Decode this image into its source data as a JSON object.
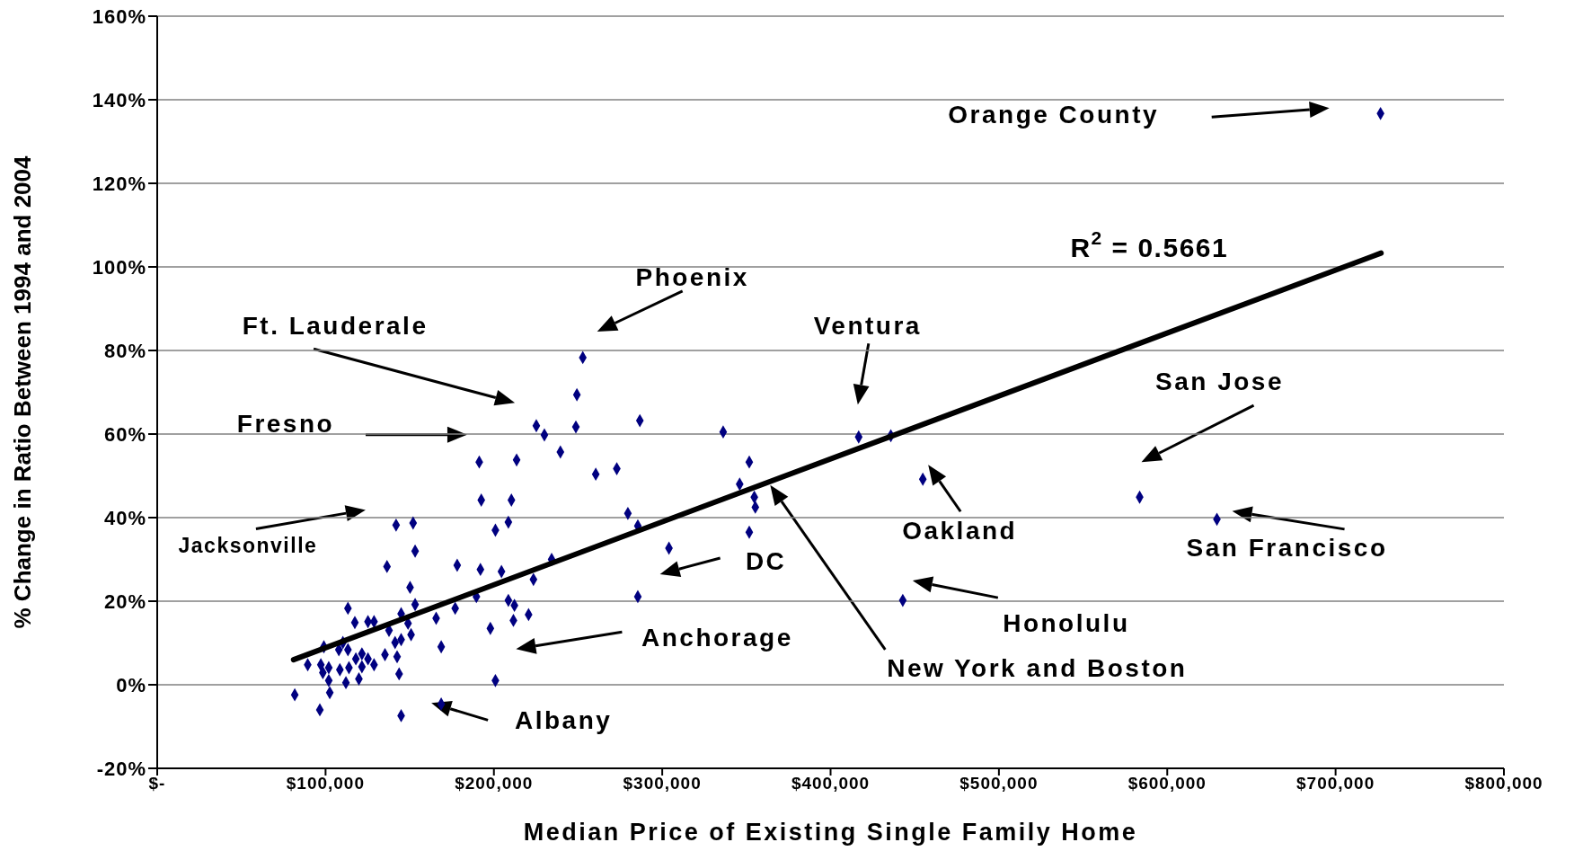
{
  "chart_data": {
    "type": "scatter",
    "xlabel": "Median Price of Existing Single Family Home",
    "ylabel": "% Change in Ratio Between 1994 and 2004",
    "xlim": [
      0,
      800000
    ],
    "xticks": [
      {
        "value": 0,
        "label": "$-"
      },
      {
        "value": 100000,
        "label": "$100,000"
      },
      {
        "value": 200000,
        "label": "$200,000"
      },
      {
        "value": 300000,
        "label": "$300,000"
      },
      {
        "value": 400000,
        "label": "$400,000"
      },
      {
        "value": 500000,
        "label": "$500,000"
      },
      {
        "value": 600000,
        "label": "$600,000"
      },
      {
        "value": 700000,
        "label": "$700,000"
      },
      {
        "value": 800000,
        "label": "$800,000"
      }
    ],
    "ylim": [
      -20,
      160
    ],
    "yticks": [
      {
        "value": -20,
        "label": "-20%"
      },
      {
        "value": 0,
        "label": "0%"
      },
      {
        "value": 20,
        "label": "20%"
      },
      {
        "value": 40,
        "label": "40%"
      },
      {
        "value": 60,
        "label": "60%"
      },
      {
        "value": 80,
        "label": "80%"
      },
      {
        "value": 100,
        "label": "100%"
      },
      {
        "value": 120,
        "label": "120%"
      },
      {
        "value": 140,
        "label": "140%"
      },
      {
        "value": 160,
        "label": "160%"
      }
    ],
    "grid": "y",
    "series": [
      {
        "marker": "diamond",
        "color": "#000080",
        "x": [
          726700,
          583600,
          629500,
          442900,
          454800,
          416700,
          435800,
          351700,
          346000,
          354700,
          355300,
          351700,
          336200,
          286700,
          252800,
          249300,
          248700,
          225200,
          230000,
          239500,
          260500,
          273000,
          279600,
          285500,
          304000,
          285500,
          191300,
          213500,
          192500,
          210400,
          208600,
          200900,
          178200,
          192000,
          204500,
          234300,
          223500,
          189600,
          208600,
          212200,
          177000,
          165700,
          211600,
          220600,
          197900,
          168700,
          200900,
          141900,
          152000,
          153200,
          136500,
          150200,
          113300,
          153200,
          144900,
          117400,
          125200,
          128800,
          137700,
          149000,
          144900,
          150800,
          141300,
          110300,
          99000,
          107900,
          113300,
          121600,
          125200,
          135300,
          142500,
          89400,
          97200,
          101900,
          108500,
          113900,
          121600,
          128800,
          98400,
          101900,
          112100,
          119800,
          118000,
          143700,
          81700,
          102500,
          96600,
          144900,
          168700
        ],
        "values": [
          136.7,
          44.9,
          39.6,
          20.2,
          49.2,
          59.3,
          59.6,
          53.3,
          48.0,
          44.9,
          42.5,
          36.5,
          60.5,
          63.2,
          78.3,
          69.4,
          61.7,
          62.0,
          59.8,
          55.7,
          50.4,
          51.7,
          41.0,
          38.0,
          32.7,
          21.1,
          53.3,
          53.8,
          44.2,
          44.2,
          38.9,
          37.0,
          28.6,
          27.6,
          27.1,
          30.0,
          25.2,
          21.1,
          20.2,
          19.0,
          18.3,
          15.9,
          15.4,
          16.8,
          13.5,
          9.1,
          1.0,
          38.2,
          38.7,
          32.0,
          28.3,
          23.3,
          18.3,
          19.2,
          17.0,
          14.9,
          15.1,
          15.1,
          13.0,
          14.7,
          10.8,
          12.0,
          10.1,
          10.1,
          9.1,
          8.4,
          8.4,
          7.4,
          6.2,
          7.2,
          6.7,
          4.8,
          4.8,
          4.1,
          3.6,
          4.1,
          4.3,
          4.8,
          2.9,
          1.0,
          0.5,
          1.4,
          6.2,
          2.6,
          -2.4,
          -1.9,
          -6.0,
          -7.4,
          -4.6
        ]
      },
      {
        "type": "line",
        "marker": "none",
        "color": "#000000",
        "x": [
          81000,
          727000
        ],
        "values": [
          6.0,
          103.3
        ]
      }
    ],
    "annotations": [
      "Orange County",
      "R$^{2}$ = 0.5661",
      "Phoenix",
      "Ft. Lauderale",
      "Ventura",
      "San Jose",
      "Fresno",
      "Jacksonville",
      "Oakland",
      "San Francisco",
      "DC",
      "Anchorage",
      "Honolulu",
      "New York and Boston",
      "Albany"
    ]
  }
}
